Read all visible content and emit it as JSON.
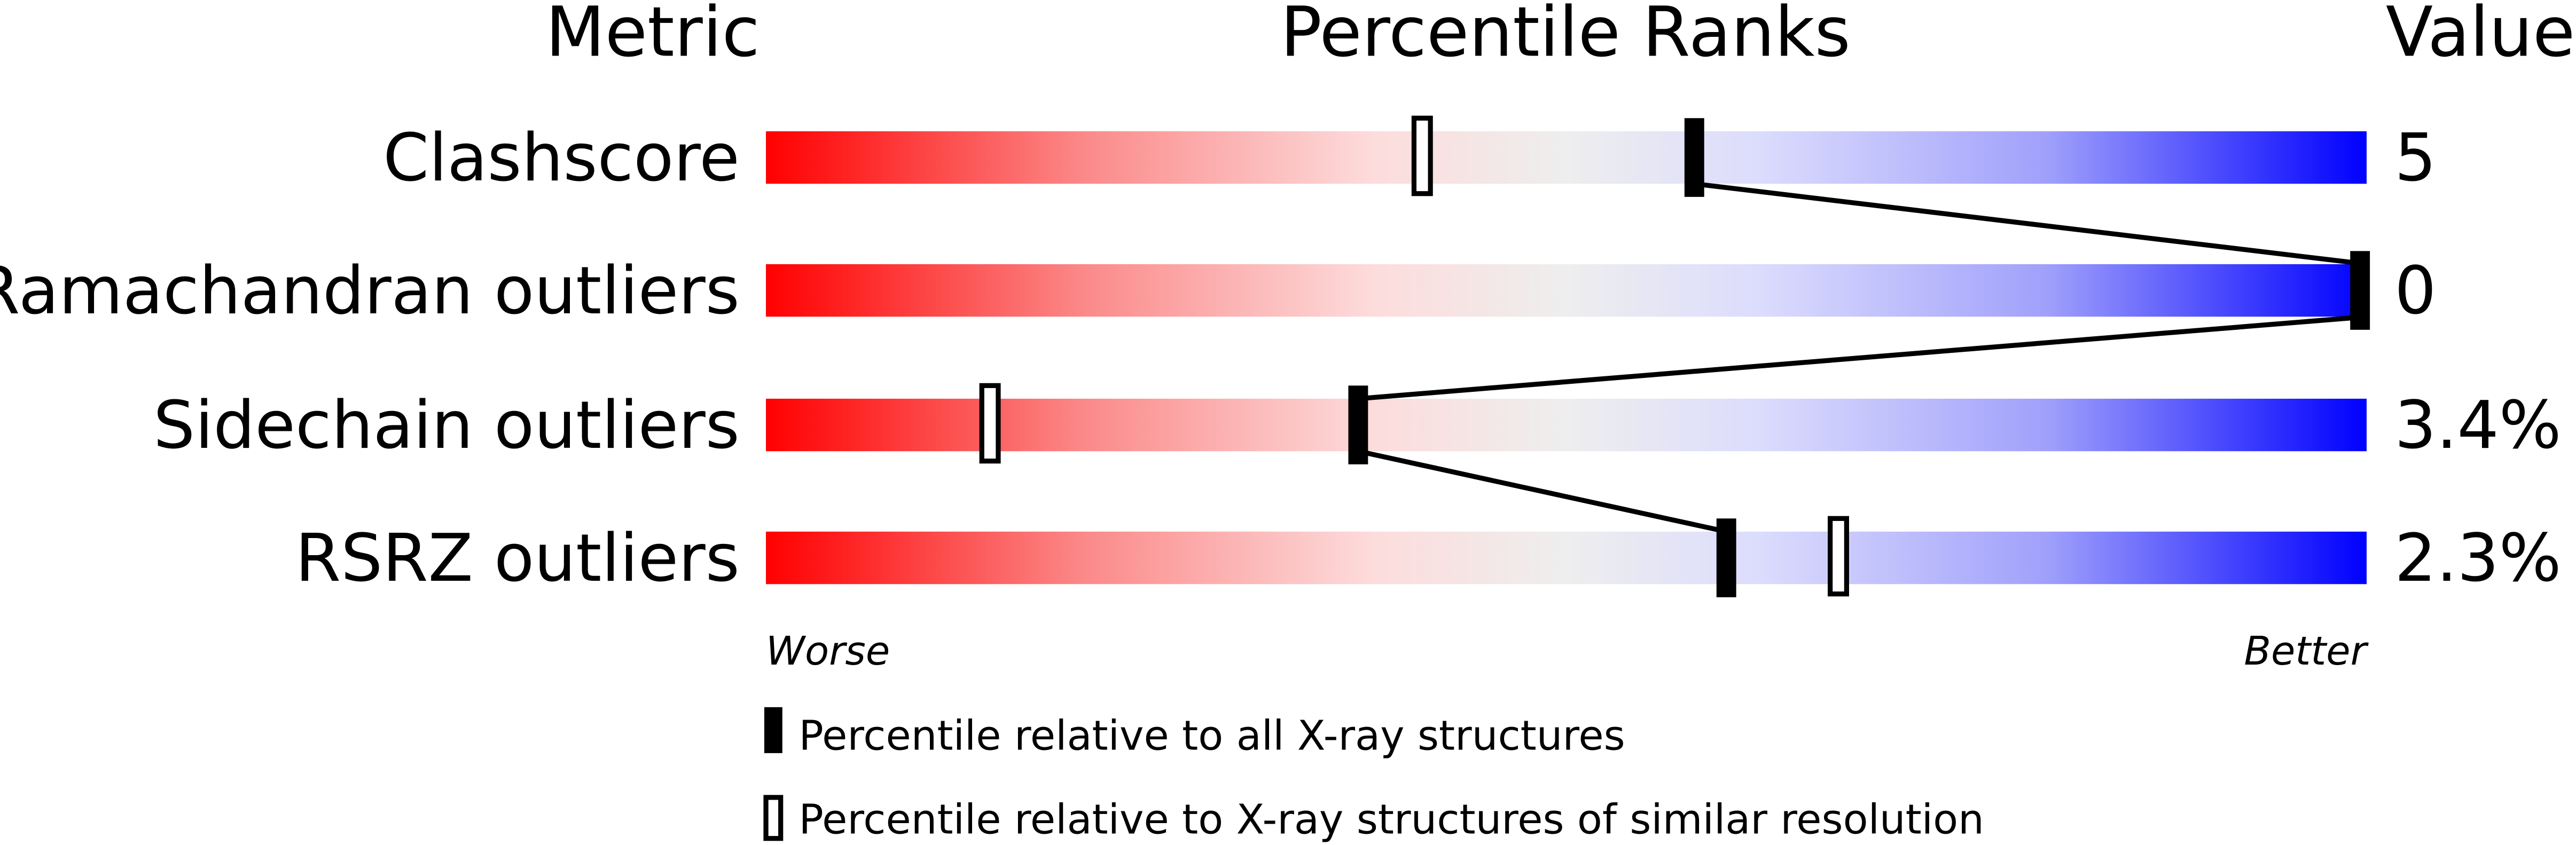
{
  "chart_data": {
    "type": "percentile-bar",
    "headers": {
      "metric": "Metric",
      "percentile": "Percentile Ranks",
      "value": "Value"
    },
    "xlim": [
      0,
      100
    ],
    "metrics": [
      {
        "name": "Clashscore",
        "value": "5",
        "percentile_all": 58,
        "percentile_similar": 41
      },
      {
        "name": "Ramachandran outliers",
        "value": "0",
        "percentile_all": 100,
        "percentile_similar": null
      },
      {
        "name": "Sidechain outliers",
        "value": "3.4%",
        "percentile_all": 37,
        "percentile_similar": 14
      },
      {
        "name": "RSRZ outliers",
        "value": "2.3%",
        "percentile_all": 60,
        "percentile_similar": 67
      }
    ],
    "axis_labels": {
      "worse": "Worse",
      "better": "Better"
    },
    "legend": [
      {
        "marker": "filled",
        "label": "Percentile relative to all X-ray structures"
      },
      {
        "marker": "open",
        "label": "Percentile relative to X-ray structures of similar resolution"
      }
    ],
    "colors": {
      "worse": "#ff0000",
      "mid": "#eeeeee",
      "better": "#0000ff"
    }
  }
}
